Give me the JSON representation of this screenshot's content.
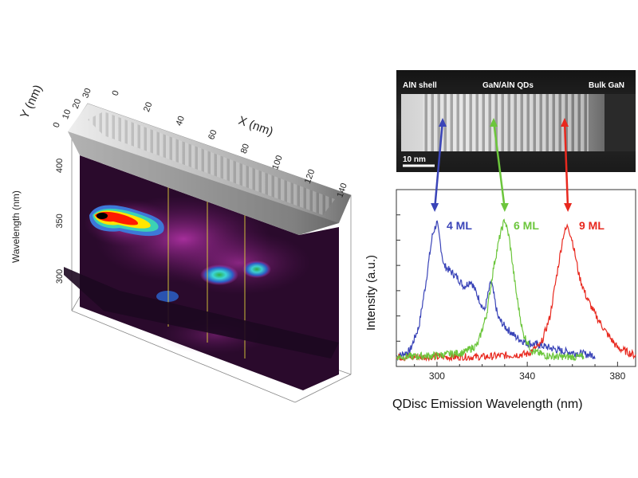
{
  "colors": {
    "blue": "#3a44b8",
    "green": "#6cc63c",
    "red": "#e8281e"
  },
  "left_panel": {
    "x_axis_title": "X (nm)",
    "y_axis_title": "Y (nm)",
    "z_axis_title": "Wavelength (nm)",
    "x_ticks": [
      "0",
      "20",
      "40",
      "60",
      "80",
      "100",
      "120",
      "140"
    ],
    "y_ticks": [
      "0",
      "10",
      "20",
      "30"
    ],
    "z_ticks": [
      "400",
      "350",
      "300"
    ]
  },
  "tem_image": {
    "label_left": "AlN shell",
    "label_mid": "GaN/AlN QDs",
    "label_right": "Bulk GaN",
    "scale_bar": "10 nm"
  },
  "chart_data": {
    "type": "line",
    "xlabel": "QDisc Emission Wavelength (nm)",
    "ylabel": "Intensity (a.u.)",
    "xlim": [
      282,
      388
    ],
    "x_ticks": [
      300,
      340,
      380
    ],
    "series": [
      {
        "name": "4 ML",
        "color": "#3a44b8",
        "x": [
          282,
          288,
          292,
          295,
          298,
          300,
          303,
          306,
          309,
          312,
          315,
          318,
          321,
          324,
          327,
          330,
          335,
          340,
          345,
          350,
          355,
          360,
          365,
          370
        ],
        "y": [
          0.02,
          0.06,
          0.22,
          0.5,
          0.82,
          0.9,
          0.62,
          0.58,
          0.54,
          0.48,
          0.52,
          0.42,
          0.32,
          0.52,
          0.28,
          0.22,
          0.15,
          0.11,
          0.1,
          0.08,
          0.06,
          0.05,
          0.04,
          0.03
        ]
      },
      {
        "name": "6 ML",
        "color": "#6cc63c",
        "x": [
          282,
          300,
          312,
          318,
          322,
          325,
          328,
          330,
          332,
          335,
          338,
          342,
          348,
          355,
          365
        ],
        "y": [
          0.02,
          0.03,
          0.05,
          0.1,
          0.3,
          0.6,
          0.82,
          0.92,
          0.8,
          0.45,
          0.18,
          0.06,
          0.03,
          0.02,
          0.02
        ]
      },
      {
        "name": "9 ML",
        "color": "#e8281e",
        "x": [
          282,
          320,
          340,
          346,
          350,
          353,
          356,
          358,
          360,
          363,
          366,
          370,
          375,
          380,
          388
        ],
        "y": [
          0.02,
          0.02,
          0.04,
          0.1,
          0.28,
          0.55,
          0.82,
          0.88,
          0.78,
          0.55,
          0.42,
          0.3,
          0.18,
          0.08,
          0.03
        ]
      }
    ]
  }
}
